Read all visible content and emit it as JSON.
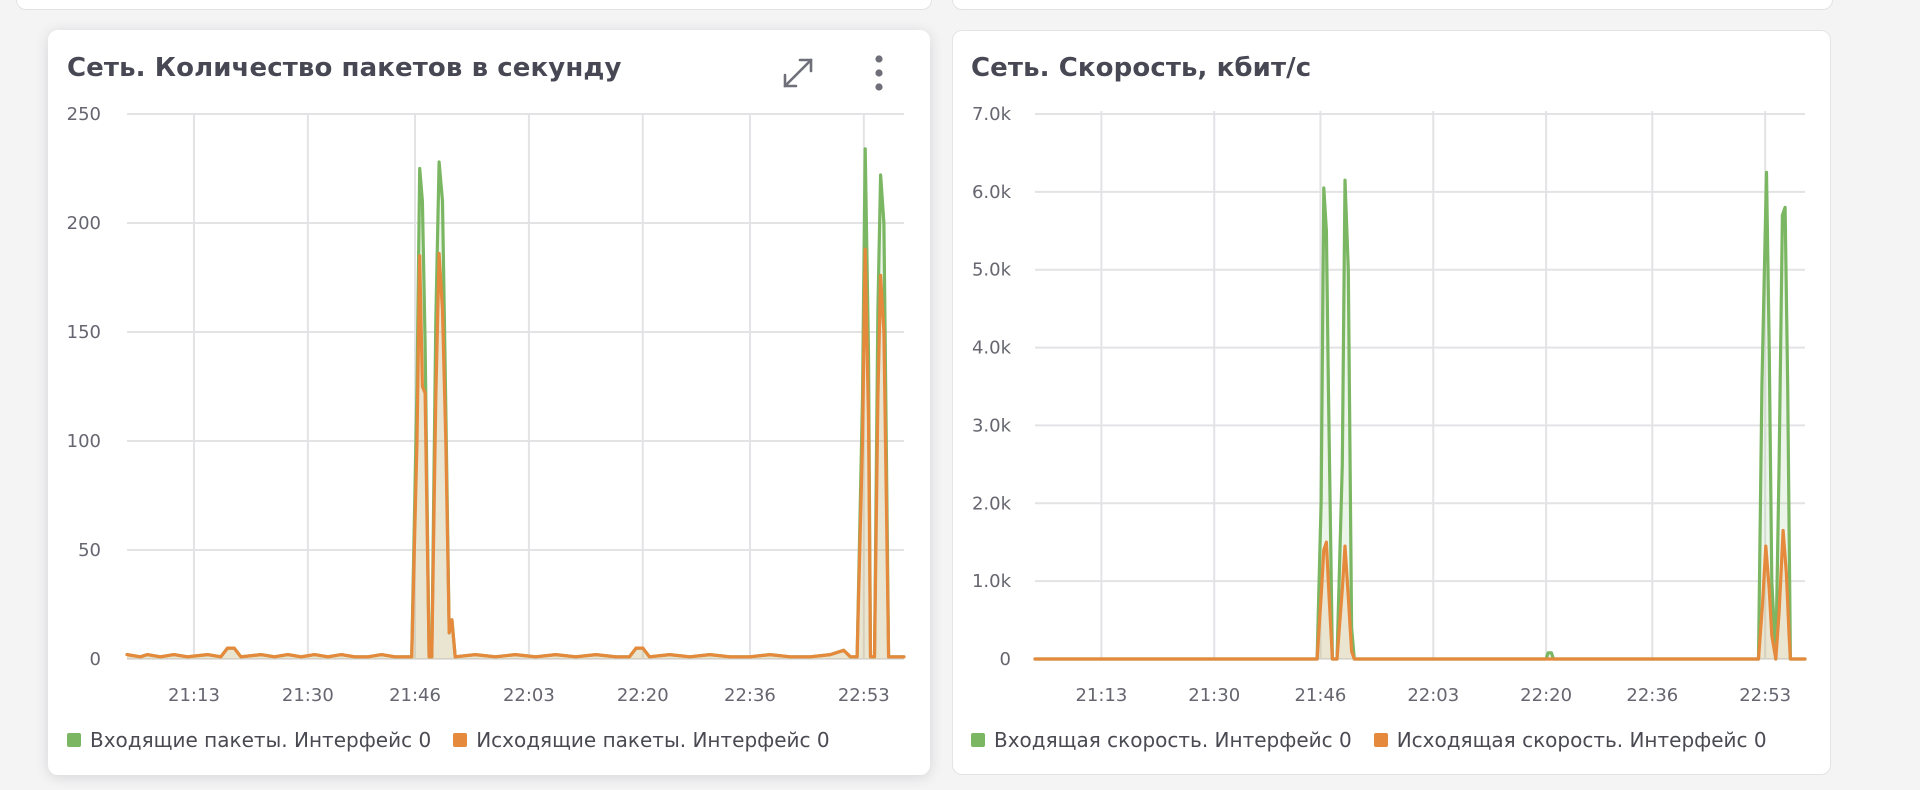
{
  "colors": {
    "incoming": "#7bb662",
    "outgoing": "#e58a3c"
  },
  "panels": [
    {
      "title": "Сеть. Количество пакетов в секунду",
      "legend": [
        {
          "label": "Входящие пакеты. Интерфейс 0"
        },
        {
          "label": "Исходящие пакеты. Интерфейс 0"
        }
      ],
      "icons": [
        "expand-icon",
        "more-vertical-icon"
      ]
    },
    {
      "title": "Сеть. Скорость, кбит/с",
      "legend": [
        {
          "label": "Входящая скорость. Интерфейс 0"
        },
        {
          "label": "Исходящая скорость. Интерфейс 0"
        }
      ]
    }
  ],
  "chart_data": [
    {
      "type": "line",
      "title": "Сеть. Количество пакетов в секунду",
      "xlabel": "",
      "ylabel": "",
      "x_unit": "minutes",
      "x_tick_labels": [
        "21:13",
        "21:30",
        "21:46",
        "22:03",
        "22:20",
        "22:36",
        "22:53"
      ],
      "x_tick_minutes": [
        1273,
        1290,
        1306,
        1323,
        1340,
        1356,
        1373
      ],
      "xlim": [
        1263,
        1379
      ],
      "y_tick_labels": [
        "0",
        "50",
        "100",
        "150",
        "200",
        "250"
      ],
      "y_ticks": [
        0,
        50,
        100,
        150,
        200,
        250
      ],
      "ylim": [
        0,
        250
      ],
      "grid": true,
      "legend_position": "bottom-left",
      "series": [
        {
          "name": "Входящие пакеты. Интерфейс 0",
          "color": "#7bb662",
          "points": [
            [
              1263,
              2
            ],
            [
              1265,
              1
            ],
            [
              1266,
              2
            ],
            [
              1268,
              1
            ],
            [
              1270,
              2
            ],
            [
              1272,
              1
            ],
            [
              1275,
              2
            ],
            [
              1277,
              1
            ],
            [
              1278,
              5
            ],
            [
              1279,
              5
            ],
            [
              1280,
              1
            ],
            [
              1283,
              2
            ],
            [
              1285,
              1
            ],
            [
              1287,
              2
            ],
            [
              1289,
              1
            ],
            [
              1291,
              2
            ],
            [
              1293,
              1
            ],
            [
              1295,
              2
            ],
            [
              1297,
              1
            ],
            [
              1299,
              1
            ],
            [
              1301,
              2
            ],
            [
              1303,
              1
            ],
            [
              1304.6,
              1
            ],
            [
              1305.5,
              1
            ],
            [
              1306.3,
              125
            ],
            [
              1306.7,
              225
            ],
            [
              1307.1,
              210
            ],
            [
              1307.5,
              145
            ],
            [
              1308.1,
              1
            ],
            [
              1308.5,
              1
            ],
            [
              1309.1,
              155
            ],
            [
              1309.6,
              228
            ],
            [
              1310.1,
              210
            ],
            [
              1310.6,
              115
            ],
            [
              1311.1,
              12
            ],
            [
              1311.5,
              18
            ],
            [
              1312,
              1
            ],
            [
              1315,
              2
            ],
            [
              1318,
              1
            ],
            [
              1321,
              2
            ],
            [
              1324,
              1
            ],
            [
              1327,
              2
            ],
            [
              1330,
              1
            ],
            [
              1333,
              2
            ],
            [
              1336,
              1
            ],
            [
              1338,
              1
            ],
            [
              1339,
              5
            ],
            [
              1340,
              5
            ],
            [
              1341,
              1
            ],
            [
              1344,
              2
            ],
            [
              1347,
              1
            ],
            [
              1350,
              2
            ],
            [
              1353,
              1
            ],
            [
              1356,
              1
            ],
            [
              1359,
              2
            ],
            [
              1362,
              1
            ],
            [
              1365,
              1
            ],
            [
              1368,
              2
            ],
            [
              1370,
              4
            ],
            [
              1371,
              1
            ],
            [
              1372,
              1
            ],
            [
              1372.8,
              120
            ],
            [
              1373.2,
              234
            ],
            [
              1373.7,
              140
            ],
            [
              1374,
              1
            ],
            [
              1374.6,
              1
            ],
            [
              1375.1,
              160
            ],
            [
              1375.5,
              222
            ],
            [
              1376,
              200
            ],
            [
              1376.7,
              1
            ],
            [
              1379,
              1
            ]
          ]
        },
        {
          "name": "Исходящие пакеты. Интерфейс 0",
          "color": "#e58a3c",
          "points": [
            [
              1263,
              2
            ],
            [
              1265,
              1
            ],
            [
              1266,
              2
            ],
            [
              1268,
              1
            ],
            [
              1270,
              2
            ],
            [
              1272,
              1
            ],
            [
              1275,
              2
            ],
            [
              1277,
              1
            ],
            [
              1278,
              5
            ],
            [
              1279,
              5
            ],
            [
              1280,
              1
            ],
            [
              1283,
              2
            ],
            [
              1285,
              1
            ],
            [
              1287,
              2
            ],
            [
              1289,
              1
            ],
            [
              1291,
              2
            ],
            [
              1293,
              1
            ],
            [
              1295,
              2
            ],
            [
              1297,
              1
            ],
            [
              1299,
              1
            ],
            [
              1301,
              2
            ],
            [
              1303,
              1
            ],
            [
              1304.6,
              1
            ],
            [
              1305.5,
              1
            ],
            [
              1306.3,
              100
            ],
            [
              1306.7,
              185
            ],
            [
              1307.1,
              125
            ],
            [
              1307.5,
              122
            ],
            [
              1308.1,
              1
            ],
            [
              1308.5,
              1
            ],
            [
              1309.1,
              120
            ],
            [
              1309.6,
              186
            ],
            [
              1310.1,
              160
            ],
            [
              1310.6,
              100
            ],
            [
              1311.1,
              12
            ],
            [
              1311.5,
              18
            ],
            [
              1312,
              1
            ],
            [
              1315,
              2
            ],
            [
              1318,
              1
            ],
            [
              1321,
              2
            ],
            [
              1324,
              1
            ],
            [
              1327,
              2
            ],
            [
              1330,
              1
            ],
            [
              1333,
              2
            ],
            [
              1336,
              1
            ],
            [
              1338,
              1
            ],
            [
              1339,
              5
            ],
            [
              1340,
              5
            ],
            [
              1341,
              1
            ],
            [
              1344,
              2
            ],
            [
              1347,
              1
            ],
            [
              1350,
              2
            ],
            [
              1353,
              1
            ],
            [
              1356,
              1
            ],
            [
              1359,
              2
            ],
            [
              1362,
              1
            ],
            [
              1365,
              1
            ],
            [
              1368,
              2
            ],
            [
              1370,
              4
            ],
            [
              1371,
              1
            ],
            [
              1372,
              1
            ],
            [
              1372.8,
              100
            ],
            [
              1373.2,
              188
            ],
            [
              1373.7,
              110
            ],
            [
              1374,
              1
            ],
            [
              1374.6,
              1
            ],
            [
              1375.1,
              120
            ],
            [
              1375.5,
              176
            ],
            [
              1376,
              150
            ],
            [
              1376.7,
              1
            ],
            [
              1379,
              1
            ]
          ]
        }
      ]
    },
    {
      "type": "line",
      "title": "Сеть. Скорость, кбит/с",
      "xlabel": "",
      "ylabel": "",
      "x_unit": "minutes",
      "x_tick_labels": [
        "21:13",
        "21:30",
        "21:46",
        "22:03",
        "22:20",
        "22:36",
        "22:53"
      ],
      "x_tick_minutes": [
        1273,
        1290,
        1306,
        1323,
        1340,
        1356,
        1373
      ],
      "xlim": [
        1263,
        1379
      ],
      "y_tick_labels": [
        "0",
        "1.0k",
        "2.0k",
        "3.0k",
        "4.0k",
        "5.0k",
        "6.0k",
        "7.0k"
      ],
      "y_ticks": [
        0,
        1000,
        2000,
        3000,
        4000,
        5000,
        6000,
        7000
      ],
      "ylim": [
        0,
        7000
      ],
      "grid": true,
      "legend_position": "bottom-left",
      "series": [
        {
          "name": "Входящая скорость. Интерфейс 0",
          "color": "#7bb662",
          "points": [
            [
              1263,
              0
            ],
            [
              1304.6,
              0
            ],
            [
              1305.5,
              0
            ],
            [
              1306.1,
              2000
            ],
            [
              1306.5,
              6050
            ],
            [
              1306.9,
              5500
            ],
            [
              1307.2,
              3500
            ],
            [
              1307.8,
              0
            ],
            [
              1308.5,
              0
            ],
            [
              1309.3,
              2500
            ],
            [
              1309.7,
              6150
            ],
            [
              1310.2,
              5000
            ],
            [
              1310.7,
              400
            ],
            [
              1311.1,
              0
            ],
            [
              1340,
              0
            ],
            [
              1340.3,
              80
            ],
            [
              1340.8,
              80
            ],
            [
              1341.1,
              0
            ],
            [
              1372,
              0
            ],
            [
              1372.5,
              3500
            ],
            [
              1373.2,
              6250
            ],
            [
              1373.6,
              4000
            ],
            [
              1374,
              1000
            ],
            [
              1374.6,
              0
            ],
            [
              1375.1,
              2500
            ],
            [
              1375.6,
              5700
            ],
            [
              1376,
              5800
            ],
            [
              1376.4,
              3500
            ],
            [
              1376.8,
              0
            ],
            [
              1379,
              0
            ]
          ]
        },
        {
          "name": "Исходящая скорость. Интерфейс 0",
          "color": "#e58a3c",
          "points": [
            [
              1263,
              0
            ],
            [
              1304.6,
              0
            ],
            [
              1305.5,
              0
            ],
            [
              1306.1,
              800
            ],
            [
              1306.5,
              1400
            ],
            [
              1306.9,
              1500
            ],
            [
              1307.3,
              800
            ],
            [
              1307.8,
              0
            ],
            [
              1308.5,
              0
            ],
            [
              1309.3,
              900
            ],
            [
              1309.7,
              1450
            ],
            [
              1310.2,
              800
            ],
            [
              1310.7,
              100
            ],
            [
              1311.1,
              0
            ],
            [
              1372,
              0
            ],
            [
              1372.6,
              700
            ],
            [
              1373.1,
              1450
            ],
            [
              1373.6,
              900
            ],
            [
              1374,
              300
            ],
            [
              1374.6,
              0
            ],
            [
              1375.1,
              600
            ],
            [
              1375.7,
              1650
            ],
            [
              1376.2,
              1100
            ],
            [
              1376.6,
              300
            ],
            [
              1376.8,
              0
            ],
            [
              1379,
              0
            ]
          ]
        }
      ]
    }
  ]
}
